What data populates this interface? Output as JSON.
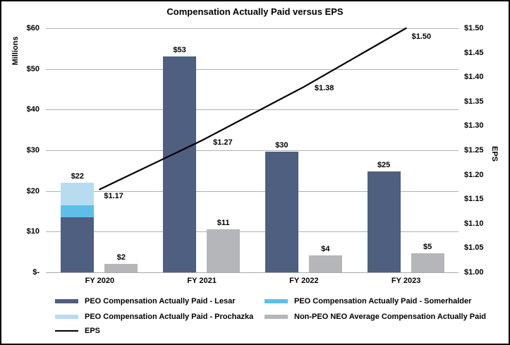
{
  "title": "Compensation Actually Paid versus EPS",
  "axes": {
    "left": {
      "title": "Millions",
      "range": [
        0,
        60
      ],
      "ticks": [
        {
          "label": "$60",
          "value": 60
        },
        {
          "label": "$50",
          "value": 50
        },
        {
          "label": "$40",
          "value": 40
        },
        {
          "label": "$30",
          "value": 30
        },
        {
          "label": "$20",
          "value": 20
        },
        {
          "label": "$10",
          "value": 10
        },
        {
          "label": "$-",
          "value": 0
        }
      ]
    },
    "right": {
      "title": "EPS",
      "range": [
        1.0,
        1.5
      ],
      "ticks": [
        {
          "label": "$1.50",
          "value": 1.5
        },
        {
          "label": "$1.45",
          "value": 1.45
        },
        {
          "label": "$1.40",
          "value": 1.4
        },
        {
          "label": "$1.35",
          "value": 1.35
        },
        {
          "label": "$1.30",
          "value": 1.3
        },
        {
          "label": "$1.25",
          "value": 1.25
        },
        {
          "label": "$1.20",
          "value": 1.2
        },
        {
          "label": "$1.15",
          "value": 1.15
        },
        {
          "label": "$1.10",
          "value": 1.1
        },
        {
          "label": "$1.05",
          "value": 1.05
        },
        {
          "label": "$1.00",
          "value": 1.0
        }
      ]
    }
  },
  "chart_data": {
    "type": "bar",
    "subtype": "stacked-bars-with-line",
    "title": "Compensation Actually Paid versus EPS",
    "categories": [
      "FY 2020",
      "FY 2021",
      "FY 2022",
      "FY 2023"
    ],
    "left_axis_range": [
      0,
      60
    ],
    "right_axis_range": [
      1.0,
      1.5
    ],
    "grid": "horizontal",
    "series": [
      {
        "name": "PEO Compensation Actually Paid - Lesar",
        "type": "bar",
        "stack": "PEO",
        "axis": "left",
        "color": "#4e5f7f",
        "values": [
          13.5,
          53,
          29.7,
          24.8
        ]
      },
      {
        "name": "PEO Compensation Actually Paid - Somerhalder",
        "type": "bar",
        "stack": "PEO",
        "axis": "left",
        "color": "#5fbee8",
        "values": [
          3,
          0,
          0,
          0
        ]
      },
      {
        "name": "PEO Compensation Actually Paid - Prochazka",
        "type": "bar",
        "stack": "PEO",
        "axis": "left",
        "color": "#b7dcf0",
        "values": [
          5.5,
          0,
          0,
          0
        ]
      },
      {
        "name": "Non-PEO NEO Average Compensation Actually Paid",
        "type": "bar",
        "stack": "NEO",
        "axis": "left",
        "color": "#b5b6b9",
        "values": [
          2,
          10.5,
          4.2,
          4.7
        ]
      },
      {
        "name": "EPS",
        "type": "line",
        "axis": "right",
        "color": "#000000",
        "values": [
          1.17,
          1.27,
          1.38,
          1.5
        ]
      }
    ],
    "data_labels": {
      "peo_stack_totals": [
        "$22",
        "$53",
        "$30",
        "$25"
      ],
      "neo_bars": [
        "$2",
        "$11",
        "$4",
        "$5"
      ],
      "eps_points": [
        "$1.17",
        "$1.27",
        "$1.38",
        "$1.50"
      ]
    }
  },
  "legend": {
    "columns": [
      [
        {
          "label": "PEO Compensation Actually Paid - Lesar",
          "swatch": "#4e5f7f",
          "kind": "bar"
        },
        {
          "label": "PEO Compensation Actually Paid - Prochazka",
          "swatch": "#b7dcf0",
          "kind": "bar"
        },
        {
          "label": "EPS",
          "swatch": "#000000",
          "kind": "line"
        }
      ],
      [
        {
          "label": "PEO Compensation Actually Paid - Somerhalder",
          "swatch": "#5fbee8",
          "kind": "bar"
        },
        {
          "label": "Non-PEO NEO Average Compensation Actually Paid",
          "swatch": "#b5b6b9",
          "kind": "bar"
        }
      ]
    ]
  }
}
